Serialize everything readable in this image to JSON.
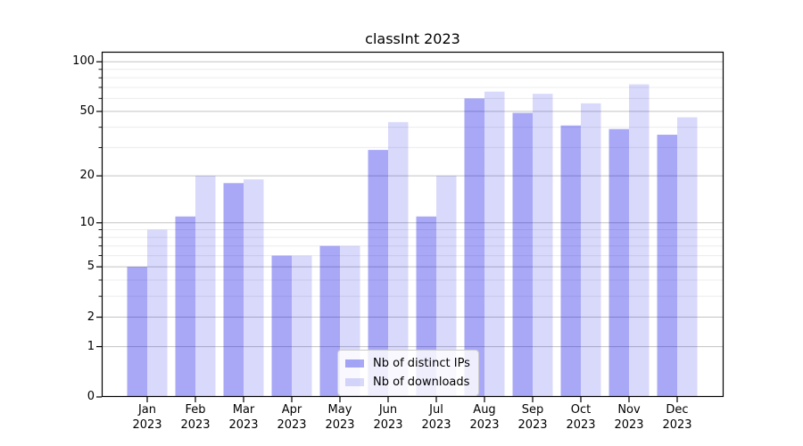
{
  "chart_data": {
    "type": "bar",
    "title": "classInt 2023",
    "categories": [
      "Jan",
      "Feb",
      "Mar",
      "Apr",
      "May",
      "Jun",
      "Jul",
      "Aug",
      "Sep",
      "Oct",
      "Nov",
      "Dec"
    ],
    "category_year": "2023",
    "series": [
      {
        "name": "Nb of distinct IPs",
        "color": "#0000e6",
        "alpha": 0.34,
        "values": [
          5,
          11,
          18,
          6,
          7,
          29,
          11,
          60,
          49,
          41,
          39,
          36
        ]
      },
      {
        "name": "Nb of downloads",
        "color": "#0000e6",
        "alpha": 0.15,
        "values": [
          9,
          20,
          19,
          6,
          7,
          43,
          20,
          66,
          64,
          56,
          73,
          46
        ]
      }
    ],
    "xlabel": "",
    "ylabel": "",
    "yscale": "log1p",
    "ylim": [
      0,
      115
    ],
    "yticks_major": [
      0,
      1,
      2,
      5,
      10,
      20,
      50,
      100
    ],
    "yticks_minor": [
      3,
      4,
      6,
      7,
      8,
      9,
      30,
      40,
      60,
      70,
      80,
      90
    ],
    "grid": "both",
    "legend_position": "lower center",
    "colors": {
      "bar_distinct_ips_rendered": "#a8a8f7",
      "bar_downloads_rendered": "#d9d9fa",
      "grid_major": "#c3c3c3",
      "grid_minor": "#ececec",
      "axis": "#000000",
      "background": "#ffffff"
    }
  }
}
